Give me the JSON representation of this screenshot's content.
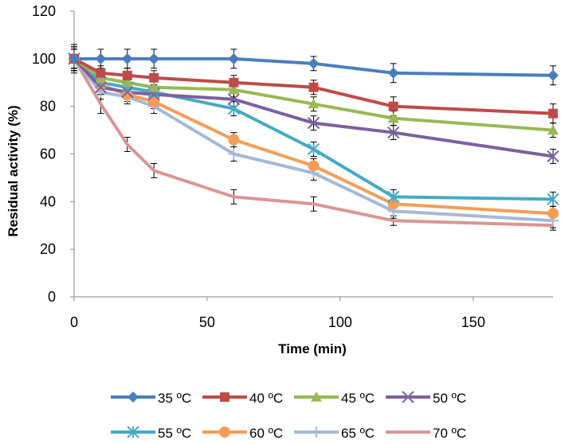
{
  "chart_data": {
    "type": "line",
    "title": "",
    "xlabel": "Time (min)",
    "ylabel": "Residual  activity (%)",
    "xlim": [
      0,
      180
    ],
    "ylim": [
      0,
      120
    ],
    "xticks": [
      0,
      50,
      100,
      150
    ],
    "yticks": [
      0,
      20,
      40,
      60,
      80,
      100,
      120
    ],
    "grid": false,
    "legend_position": "bottom",
    "x": [
      0,
      10,
      20,
      30,
      60,
      90,
      120,
      180
    ],
    "series": [
      {
        "name": "35 ºC",
        "color": "#4A7EBB",
        "marker": "diamond",
        "values": [
          100,
          100,
          100,
          100,
          100,
          98,
          94,
          93
        ],
        "errors": [
          6,
          4,
          4,
          4,
          4,
          3,
          4,
          4
        ]
      },
      {
        "name": "40 ºC",
        "color": "#BE4B48",
        "marker": "square",
        "values": [
          100,
          94,
          93,
          92,
          90,
          88,
          80,
          77
        ],
        "errors": [
          5,
          3,
          3,
          3,
          3,
          3,
          4,
          4
        ]
      },
      {
        "name": "45 ºC",
        "color": "#98B954",
        "marker": "triangle",
        "values": [
          100,
          92,
          90,
          88,
          87,
          81,
          75,
          70
        ],
        "errors": [
          4,
          3,
          3,
          3,
          3,
          3,
          3,
          3
        ]
      },
      {
        "name": "50 ºC",
        "color": "#7D60A0",
        "marker": "x",
        "values": [
          100,
          88,
          86,
          85,
          83,
          73,
          69,
          59
        ],
        "errors": [
          5,
          3,
          3,
          3,
          3,
          3,
          3,
          3
        ]
      },
      {
        "name": "55 ºC",
        "color": "#46AAC5",
        "marker": "star",
        "values": [
          100,
          90,
          88,
          86,
          79,
          62,
          42,
          41
        ],
        "errors": [
          5,
          3,
          3,
          3,
          3,
          3,
          3,
          3
        ]
      },
      {
        "name": "60 ºC",
        "color": "#F59D56",
        "marker": "circle",
        "values": [
          100,
          89,
          85,
          82,
          66,
          55,
          39,
          35
        ],
        "errors": [
          4,
          3,
          3,
          3,
          3,
          3,
          3,
          3
        ]
      },
      {
        "name": "65 ºC",
        "color": "#A5B8D8",
        "marker": "plus",
        "values": [
          100,
          86,
          84,
          80,
          60,
          52,
          36,
          32
        ],
        "errors": [
          4,
          3,
          3,
          3,
          3,
          3,
          3,
          3
        ]
      },
      {
        "name": "70 ºC",
        "color": "#D99694",
        "marker": "none",
        "values": [
          100,
          81,
          64,
          53,
          42,
          39,
          32,
          30
        ],
        "errors": [
          4,
          4,
          3,
          3,
          3,
          3,
          2,
          2
        ]
      }
    ]
  }
}
